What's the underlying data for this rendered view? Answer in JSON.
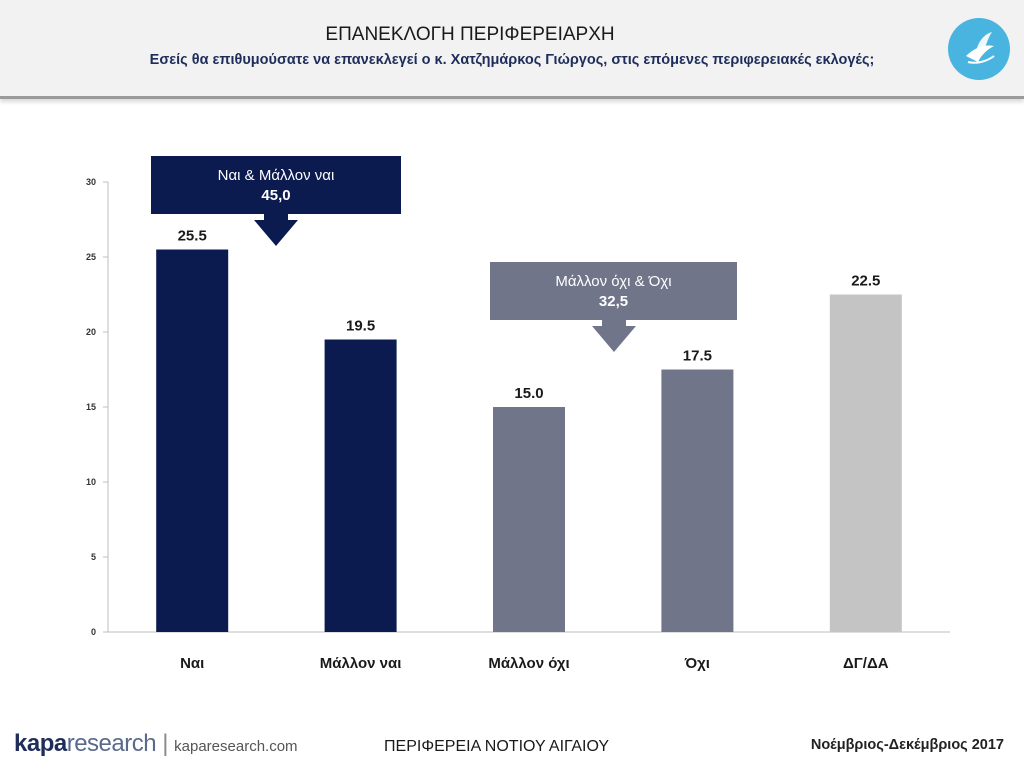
{
  "header": {
    "title": "ΕΠΑΝΕΚΛΟΓΗ ΠΕΡΙΦΕΡΕΙΑΡΧΗ",
    "subtitle": "Εσείς θα επιθυμούσατε να επανεκλεγεί ο κ. Χατζημάρκος Γιώργος, στις επόμενες περιφερειακές εκλογές;",
    "logo_icon": "bird-logo-icon"
  },
  "chart_data": {
    "type": "bar",
    "categories": [
      "Ναι",
      "Μάλλον ναι",
      "Μάλλον όχι",
      "Όχι",
      "ΔΓ/ΔΑ"
    ],
    "values": [
      25.5,
      19.5,
      15.0,
      17.5,
      22.5
    ],
    "value_labels": [
      "25.5",
      "19.5",
      "15.0",
      "17.5",
      "22.5"
    ],
    "colors": [
      "#0b1b4f",
      "#0b1b4f",
      "#717589",
      "#717589",
      "#c4c4c4"
    ],
    "ylim": [
      0,
      30
    ],
    "yticks": [
      0,
      5,
      10,
      15,
      20,
      25,
      30
    ],
    "grid": false,
    "annotations": [
      {
        "text": "Ναι & Μάλλον ναι",
        "value": "45,0",
        "color": "#0b1b4f",
        "categories": [
          0,
          1
        ]
      },
      {
        "text": "Μάλλον όχι & Όχι",
        "value": "32,5",
        "color": "#717589",
        "categories": [
          2,
          3
        ]
      }
    ]
  },
  "footer": {
    "brand_bold": "kapa",
    "brand_light": "research",
    "brand_separator": "|",
    "brand_url": "kaparesearch.com",
    "region": "ΠΕΡΙΦΕΡΕΙΑ ΝΟΤΙΟΥ ΑΙΓΑΙΟΥ",
    "date": "Νοέμβριος-Δεκέμβριος 2017"
  }
}
